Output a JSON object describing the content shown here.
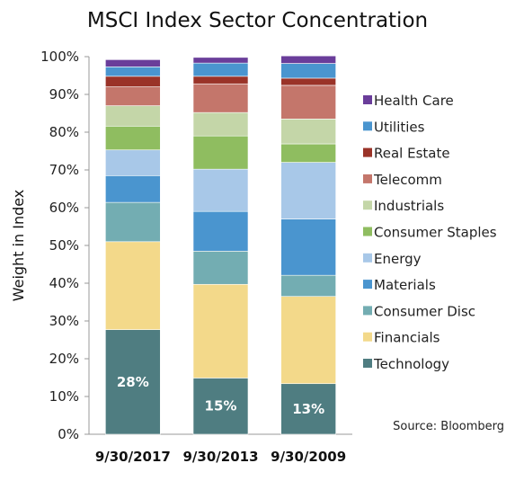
{
  "chart_data": {
    "type": "bar",
    "stacked": true,
    "title": "MSCI Index Sector Concentration",
    "ylabel": "Weight in Index",
    "ylim": [
      0,
      100
    ],
    "yticks": [
      "0%",
      "10%",
      "20%",
      "30%",
      "40%",
      "50%",
      "60%",
      "70%",
      "80%",
      "90%",
      "100%"
    ],
    "categories": [
      "9/30/2017",
      "9/30/2013",
      "9/30/2009"
    ],
    "legend_position": "right",
    "series": [
      {
        "name": "Technology",
        "color": "#4f7d81",
        "values": [
          27.7,
          14.9,
          13.4
        ]
      },
      {
        "name": "Financials",
        "color": "#f3d98a",
        "values": [
          23.3,
          24.8,
          23.1
        ]
      },
      {
        "name": "Consumer Disc",
        "color": "#73adb2",
        "values": [
          10.4,
          8.8,
          5.6
        ]
      },
      {
        "name": "Materials",
        "color": "#4a95cf",
        "values": [
          7.1,
          10.5,
          14.9
        ]
      },
      {
        "name": "Energy",
        "color": "#a8c8e8",
        "values": [
          6.8,
          11.2,
          15.0
        ]
      },
      {
        "name": "Consumer Staples",
        "color": "#8fbd60",
        "values": [
          6.3,
          8.8,
          4.9
        ]
      },
      {
        "name": "Industrials",
        "color": "#c4d6a8",
        "values": [
          5.4,
          6.2,
          6.6
        ]
      },
      {
        "name": "Telecomm",
        "color": "#c4766b",
        "values": [
          5.0,
          7.6,
          8.9
        ]
      },
      {
        "name": "Real Estate",
        "color": "#9a3328",
        "values": [
          2.8,
          2.0,
          1.9
        ]
      },
      {
        "name": "Utilities",
        "color": "#4a95cf",
        "values": [
          2.5,
          3.5,
          3.9
        ]
      },
      {
        "name": "Health Care",
        "color": "#6a3d9a",
        "values": [
          1.9,
          1.5,
          2.0
        ]
      }
    ],
    "data_labels": [
      "28%",
      "15%",
      "13%"
    ]
  },
  "source": "Source: Bloomberg"
}
